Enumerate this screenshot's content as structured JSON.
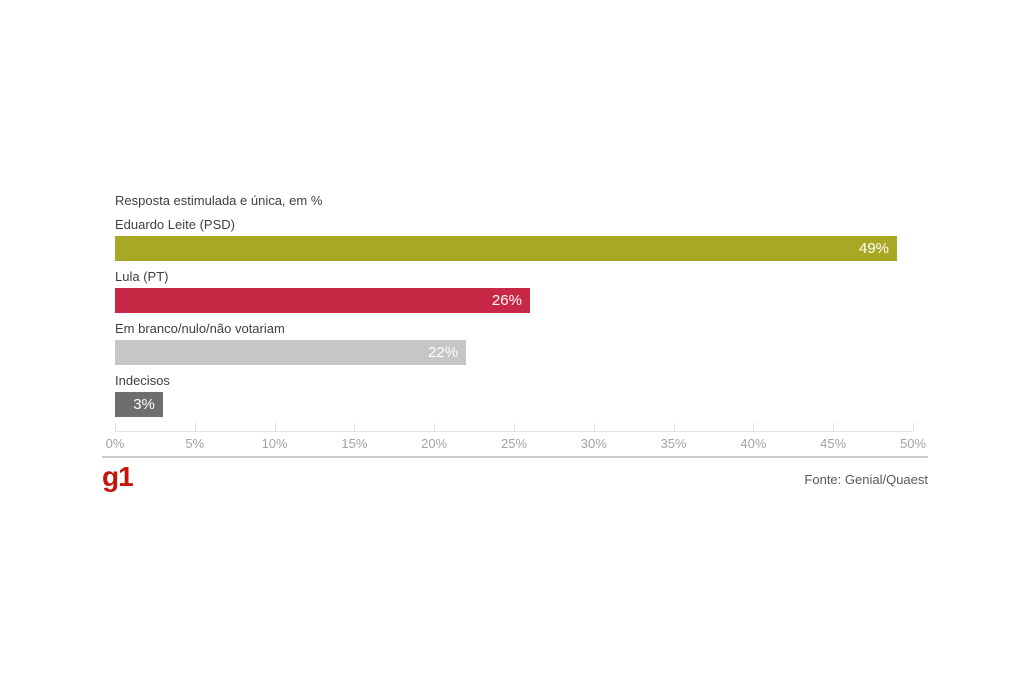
{
  "chart_data": {
    "type": "bar",
    "orientation": "horizontal",
    "subtitle": "Resposta estimulada e única, em %",
    "categories": [
      "Eduardo Leite (PSD)",
      "Lula (PT)",
      "Em branco/nulo/não votariam",
      "Indecisos"
    ],
    "values": [
      49,
      26,
      22,
      3
    ],
    "value_labels": [
      "49%",
      "26%",
      "22%",
      "3%"
    ],
    "bar_colors": [
      "#a8a825",
      "#c62845",
      "#c6c6c6",
      "#6e6e6e"
    ],
    "xlim": [
      0,
      50
    ],
    "x_tick_labels": [
      "0%",
      "5%",
      "10%",
      "15%",
      "20%",
      "25%",
      "30%",
      "35%",
      "40%",
      "45%",
      "50%"
    ],
    "legend": "none",
    "grid": "off",
    "value_label_position": "inside-end"
  },
  "footer": {
    "logo_text": "g1",
    "logo_color": "#c4170c",
    "source": "Fonte: Genial/Quaest"
  }
}
